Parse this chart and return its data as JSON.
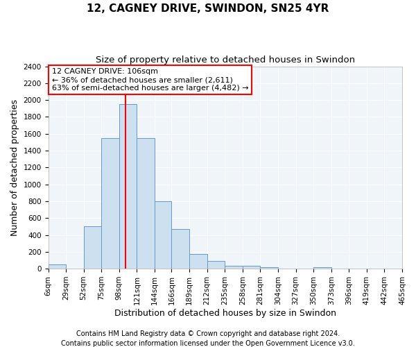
{
  "title": "12, CAGNEY DRIVE, SWINDON, SN25 4YR",
  "subtitle": "Size of property relative to detached houses in Swindon",
  "xlabel": "Distribution of detached houses by size in Swindon",
  "ylabel": "Number of detached properties",
  "bar_color": "#cce0f0",
  "bar_edge_color": "#6699cc",
  "bin_edges": [
    6,
    29,
    52,
    75,
    98,
    121,
    144,
    166,
    189,
    212,
    235,
    258,
    281,
    304,
    327,
    350,
    373,
    396,
    419,
    442,
    465
  ],
  "bin_labels": [
    "6sqm",
    "29sqm",
    "52sqm",
    "75sqm",
    "98sqm",
    "121sqm",
    "144sqm",
    "166sqm",
    "189sqm",
    "212sqm",
    "235sqm",
    "258sqm",
    "281sqm",
    "304sqm",
    "327sqm",
    "350sqm",
    "373sqm",
    "396sqm",
    "419sqm",
    "442sqm",
    "465sqm"
  ],
  "counts": [
    50,
    0,
    500,
    1550,
    1950,
    1550,
    800,
    470,
    175,
    90,
    30,
    30,
    15,
    0,
    0,
    15,
    0,
    0,
    0,
    0
  ],
  "redline_x": 106,
  "annotation_title": "12 CAGNEY DRIVE: 106sqm",
  "annotation_line1": "← 36% of detached houses are smaller (2,611)",
  "annotation_line2": "63% of semi-detached houses are larger (4,482) →",
  "redline_color": "red",
  "ylim": [
    0,
    2400
  ],
  "yticks": [
    0,
    200,
    400,
    600,
    800,
    1000,
    1200,
    1400,
    1600,
    1800,
    2000,
    2200,
    2400
  ],
  "footer1": "Contains HM Land Registry data © Crown copyright and database right 2024.",
  "footer2": "Contains public sector information licensed under the Open Government Licence v3.0.",
  "bg_color": "#ffffff",
  "plot_bg_color": "#f0f5fa",
  "grid_color": "#ffffff",
  "title_fontsize": 11,
  "subtitle_fontsize": 9.5,
  "axis_label_fontsize": 9,
  "tick_fontsize": 7.5,
  "footer_fontsize": 7
}
